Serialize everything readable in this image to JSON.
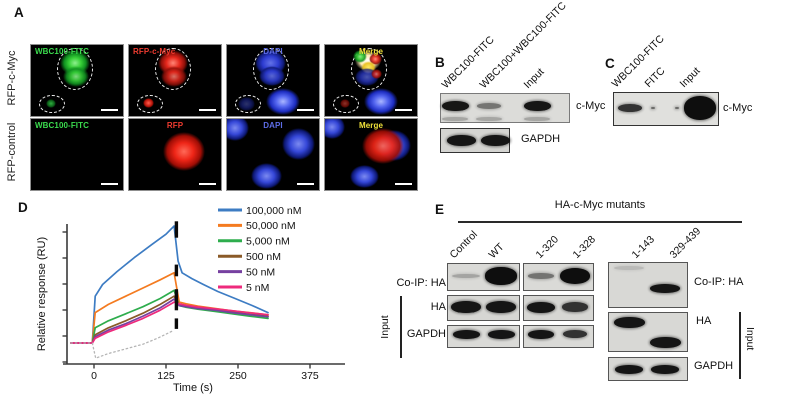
{
  "figure": {
    "panel_a": {
      "label": "A",
      "rows": [
        {
          "row_label": "RFP-c-Myc",
          "tiles": [
            {
              "caption": "WBC100-FITC",
              "caption_color": "#3bdc4e",
              "align": "left",
              "art": "fitc_cmyc"
            },
            {
              "caption": "RFP-c-Myc",
              "caption_color": "#ef3b30",
              "align": "left",
              "art": "rfp_cmyc"
            },
            {
              "caption": "DAPI",
              "caption_color": "#5d6ce6",
              "align": "center",
              "art": "dapi_cmyc"
            },
            {
              "caption": "Merge",
              "caption_color": "#f0e13a",
              "align": "center",
              "art": "merge_cmyc"
            }
          ]
        },
        {
          "row_label": "RFP-control",
          "tiles": [
            {
              "caption": "WBC100-FITC",
              "caption_color": "#3bdc4e",
              "align": "left",
              "art": "blank"
            },
            {
              "caption": "RFP",
              "caption_color": "#ef3b30",
              "align": "center",
              "art": "rfp_control"
            },
            {
              "caption": "DAPI",
              "caption_color": "#5d6ce6",
              "align": "center",
              "art": "dapi_control"
            },
            {
              "caption": "Merge",
              "caption_color": "#f0e13a",
              "align": "center",
              "art": "merge_control"
            }
          ]
        }
      ]
    },
    "panel_b": {
      "label": "B",
      "lane_labels": [
        "WBC100-FITC",
        "WBC100+WBC100-FITC",
        "Input"
      ],
      "blots": [
        {
          "id": "b_cmyc",
          "target": "c-Myc",
          "bands": [
            {
              "lane": 0,
              "strength": "strong"
            },
            {
              "lane": 0,
              "strength": "trace",
              "dy": 13
            },
            {
              "lane": 1,
              "strength": "faint"
            },
            {
              "lane": 1,
              "strength": "trace",
              "dy": 13
            },
            {
              "lane": 2,
              "strength": "strong"
            },
            {
              "lane": 2,
              "strength": "trace",
              "dy": 13
            }
          ]
        },
        {
          "id": "b_gapdh",
          "target": "GAPDH",
          "bands": [
            {
              "lane": 0,
              "strength": "strong"
            },
            {
              "lane": 1,
              "strength": "strong"
            }
          ]
        }
      ]
    },
    "panel_c": {
      "label": "C",
      "lane_labels": [
        "WBC100-FITC",
        "FITC",
        "Input"
      ],
      "blots": [
        {
          "id": "c_cmyc",
          "target": "c-Myc",
          "bands": [
            {
              "lane": 0,
              "strength": "medium"
            },
            {
              "lane": 1,
              "strength": "speck"
            },
            {
              "lane": 1,
              "strength": "speck",
              "dx": 24
            },
            {
              "lane": 2,
              "strength": "heavy"
            }
          ]
        }
      ]
    },
    "panel_e": {
      "label": "E",
      "header": "HA-c-Myc mutants",
      "lane_labels": [
        "Control",
        "WT",
        "1-320",
        "1-328",
        "1-143",
        "329-439"
      ],
      "coip_label": "Co-IP: HA",
      "ha_label": "HA",
      "gapdh_label": "GAPDH",
      "input_label": "Input",
      "blots": [
        {
          "id": "e_l1_coip",
          "bands": [
            {
              "lane": 0,
              "strength": "trace"
            },
            {
              "lane": 1,
              "strength": "vstrong"
            }
          ]
        },
        {
          "id": "e_l1_ha",
          "bands": [
            {
              "lane": 0,
              "strength": "strong"
            },
            {
              "lane": 1,
              "strength": "strong"
            }
          ]
        },
        {
          "id": "e_l1_gapdh",
          "bands": [
            {
              "lane": 0,
              "strength": "strong"
            },
            {
              "lane": 1,
              "strength": "strong"
            }
          ]
        },
        {
          "id": "e_l2_coip",
          "bands": [
            {
              "lane": 0,
              "strength": "faint"
            },
            {
              "lane": 1,
              "strength": "vstrong"
            }
          ]
        },
        {
          "id": "e_l2_ha",
          "bands": [
            {
              "lane": 0,
              "strength": "strong"
            },
            {
              "lane": 1,
              "strength": "medium"
            }
          ]
        },
        {
          "id": "e_l2_gapdh",
          "bands": [
            {
              "lane": 0,
              "strength": "strong"
            },
            {
              "lane": 1,
              "strength": "medium"
            }
          ]
        },
        {
          "id": "e_r_coip",
          "bands": [
            {
              "lane": 0,
              "strength": "smudge",
              "dy": -17
            },
            {
              "lane": 1,
              "strength": "strong",
              "dy": 3
            }
          ]
        },
        {
          "id": "e_r_ha",
          "bands": [
            {
              "lane": 0,
              "strength": "strong",
              "dy": -10
            },
            {
              "lane": 1,
              "strength": "strong",
              "dy": 10
            }
          ]
        },
        {
          "id": "e_r_gapdh",
          "bands": [
            {
              "lane": 0,
              "strength": "strong"
            },
            {
              "lane": 1,
              "strength": "strong"
            }
          ]
        }
      ]
    }
  },
  "chart_data": {
    "type": "line",
    "title": "",
    "xlabel": "Time (s)",
    "ylabel": "Relative response (RU)",
    "x_ticks": [
      0,
      125,
      250,
      375
    ],
    "xlim": [
      -55,
      435
    ],
    "ylim": [
      -25,
      112
    ],
    "grid": false,
    "legend_position": "upper right",
    "series": [
      {
        "name": "100,000 nM",
        "color": "#3d7cc3",
        "in_legend": true,
        "x": [
          -40,
          -3,
          2,
          15,
          40,
          70,
          100,
          125,
          139,
          146,
          153,
          170,
          190,
          215,
          245,
          275,
          302
        ],
        "y": [
          0,
          0,
          40,
          50,
          61,
          73,
          84,
          93,
          100,
          70,
          60,
          55,
          50,
          44,
          38,
          32,
          26
        ]
      },
      {
        "name": "50,000 nM",
        "color": "#f47b20",
        "in_legend": true,
        "x": [
          -40,
          -3,
          2,
          25,
          55,
          85,
          115,
          139,
          148,
          160,
          180,
          210,
          240,
          270,
          302
        ],
        "y": [
          0,
          0,
          26,
          33,
          40,
          47,
          54,
          60,
          35,
          33.5,
          31.5,
          29.5,
          27.5,
          26,
          24
        ]
      },
      {
        "name": "5,000 nM",
        "color": "#2ead4d",
        "in_legend": true,
        "x": [
          -40,
          -3,
          2,
          25,
          55,
          85,
          115,
          139,
          148,
          160,
          180,
          210,
          240,
          270,
          302
        ],
        "y": [
          0,
          0,
          13,
          19,
          25,
          31,
          38,
          45,
          32,
          30.5,
          29,
          27,
          25,
          23,
          21
        ]
      },
      {
        "name": "500 nM",
        "color": "#8a5a28",
        "in_legend": true,
        "x": [
          -40,
          -3,
          2,
          25,
          55,
          85,
          115,
          139,
          148,
          160,
          180,
          210,
          240,
          270,
          302
        ],
        "y": [
          0,
          0,
          7,
          13,
          19,
          25.5,
          33,
          40,
          33,
          31.5,
          30,
          28.5,
          26.5,
          24.5,
          22.8
        ]
      },
      {
        "name": "50 nM",
        "color": "#7640a0",
        "in_legend": true,
        "x": [
          -40,
          -3,
          2,
          25,
          55,
          85,
          115,
          139,
          148,
          160,
          180,
          210,
          240,
          270,
          302
        ],
        "y": [
          0,
          0,
          5.5,
          11,
          16.5,
          23,
          30,
          37.5,
          32,
          31,
          29.5,
          28,
          26,
          24.2,
          22.4
        ]
      },
      {
        "name": "5 nM",
        "color": "#ee2a7c",
        "in_legend": true,
        "x": [
          -40,
          -3,
          2,
          25,
          55,
          85,
          115,
          139,
          148,
          160,
          180,
          210,
          240,
          270,
          302
        ],
        "y": [
          0,
          0,
          4,
          9.5,
          15,
          21,
          28,
          35,
          33.5,
          32.2,
          30.8,
          29.2,
          27.6,
          25.8,
          24.2
        ]
      },
      {
        "name": "buffer reference",
        "color": "#b5b5b5",
        "in_legend": false,
        "dotted": true,
        "x": [
          -40,
          -3,
          3,
          25,
          55,
          85,
          110,
          135
        ],
        "y": [
          0,
          0,
          -13,
          -9,
          -5,
          -1,
          4,
          10
        ]
      }
    ],
    "event_marks": {
      "t": 143,
      "ru_segments": [
        [
          90,
          104
        ],
        [
          57,
          67
        ],
        [
          28,
          46
        ],
        [
          12,
          21
        ]
      ]
    }
  }
}
